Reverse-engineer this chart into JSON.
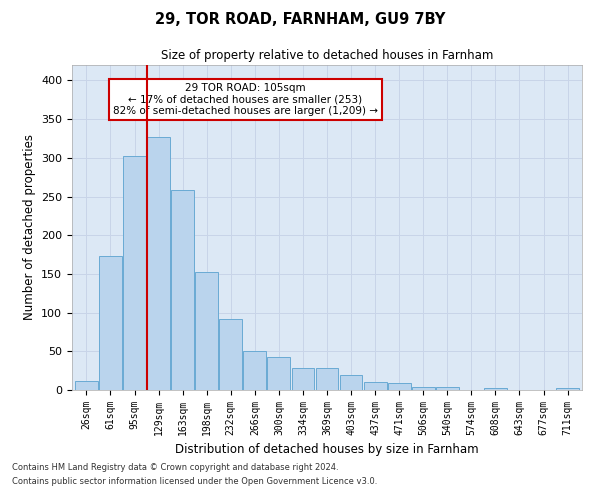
{
  "title1": "29, TOR ROAD, FARNHAM, GU9 7BY",
  "title2": "Size of property relative to detached houses in Farnham",
  "xlabel": "Distribution of detached houses by size in Farnham",
  "ylabel": "Number of detached properties",
  "categories": [
    "26sqm",
    "61sqm",
    "95sqm",
    "129sqm",
    "163sqm",
    "198sqm",
    "232sqm",
    "266sqm",
    "300sqm",
    "334sqm",
    "369sqm",
    "403sqm",
    "437sqm",
    "471sqm",
    "506sqm",
    "540sqm",
    "574sqm",
    "608sqm",
    "643sqm",
    "677sqm",
    "711sqm"
  ],
  "values": [
    11,
    173,
    302,
    327,
    258,
    153,
    92,
    50,
    43,
    28,
    28,
    20,
    10,
    9,
    4,
    4,
    0,
    2,
    0,
    0,
    3
  ],
  "bar_color": "#bad4ed",
  "bar_edge_color": "#6aaad4",
  "vline_x_index": 2,
  "vline_color": "#cc0000",
  "annotation_text": "29 TOR ROAD: 105sqm\n← 17% of detached houses are smaller (253)\n82% of semi-detached houses are larger (1,209) →",
  "annotation_box_color": "#ffffff",
  "annotation_box_edge_color": "#cc0000",
  "grid_color": "#c8d4e8",
  "background_color": "#dce8f5",
  "ylim": [
    0,
    420
  ],
  "yticks": [
    0,
    50,
    100,
    150,
    200,
    250,
    300,
    350,
    400
  ],
  "footnote1": "Contains HM Land Registry data © Crown copyright and database right 2024.",
  "footnote2": "Contains public sector information licensed under the Open Government Licence v3.0."
}
